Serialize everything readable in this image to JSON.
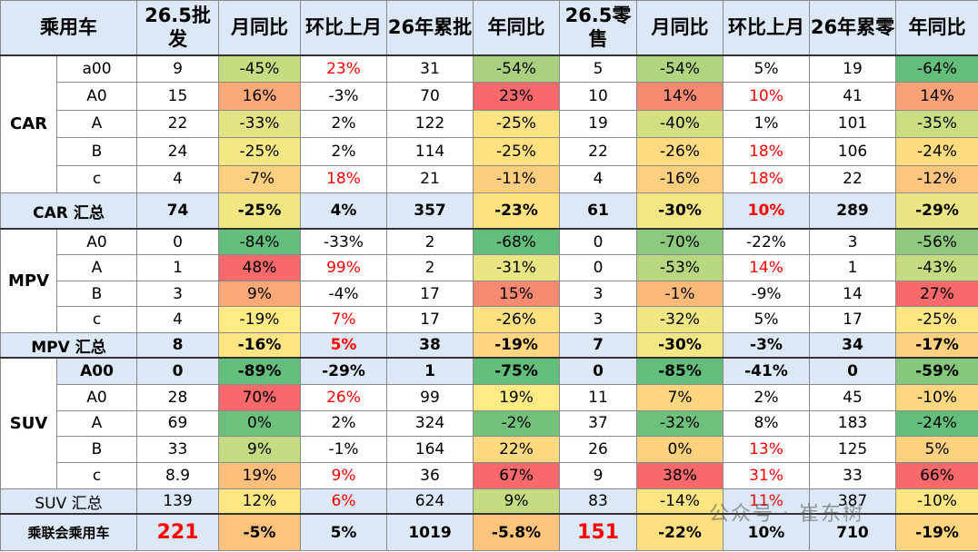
{
  "header": {
    "title": "乘用车",
    "columns": [
      "26.5批发",
      "月同比",
      "环比上月",
      "26年累批",
      "年同比",
      "26.5零售",
      "月同比",
      "环比上月",
      "26年累零",
      "年同比"
    ]
  },
  "groups": [
    {
      "label": "CAR",
      "rows": [
        {
          "sub": "a00",
          "cells": [
            "9",
            "-45%",
            "23%",
            "31",
            "-54%",
            "5",
            "-54%",
            "5%",
            "19",
            "-64%"
          ],
          "fills": [
            null,
            "#c5dd80",
            null,
            null,
            "#a8d27f",
            null,
            "#b0d47f",
            null,
            null,
            "#63be7b"
          ],
          "text_colors": [
            null,
            null,
            "#ff0000",
            null,
            null,
            null,
            null,
            null,
            null,
            null
          ]
        },
        {
          "sub": "A0",
          "cells": [
            "15",
            "16%",
            "-3%",
            "70",
            "23%",
            "10",
            "14%",
            "10%",
            "41",
            "14%"
          ],
          "fills": [
            null,
            "#fbaa77",
            null,
            null,
            "#f8696b",
            null,
            "#f98a72",
            null,
            null,
            "#fba276"
          ],
          "text_colors": [
            null,
            null,
            null,
            null,
            null,
            null,
            null,
            "#ff0000",
            null,
            null
          ]
        },
        {
          "sub": "A",
          "cells": [
            "22",
            "-33%",
            "2%",
            "122",
            "-25%",
            "19",
            "-40%",
            "1%",
            "101",
            "-35%"
          ],
          "fills": [
            null,
            "#e2e383",
            null,
            null,
            "#fee383",
            null,
            "#d5df82",
            null,
            null,
            "#c9dd81"
          ],
          "text_colors": [
            null,
            null,
            null,
            null,
            null,
            null,
            null,
            null,
            null,
            null
          ]
        },
        {
          "sub": "B",
          "cells": [
            "24",
            "-25%",
            "2%",
            "114",
            "-25%",
            "22",
            "-26%",
            "18%",
            "106",
            "-24%"
          ],
          "fills": [
            null,
            "#f3e884",
            null,
            null,
            "#fee282",
            null,
            "#fedb81",
            null,
            null,
            "#fedd81"
          ],
          "text_colors": [
            null,
            null,
            null,
            null,
            null,
            null,
            null,
            "#ff0000",
            null,
            null
          ]
        },
        {
          "sub": "c",
          "cells": [
            "4",
            "-7%",
            "18%",
            "21",
            "-11%",
            "4",
            "-16%",
            "18%",
            "22",
            "-12%"
          ],
          "fills": [
            null,
            "#fed07f",
            null,
            null,
            "#fece7f",
            null,
            "#fecf7f",
            null,
            null,
            "#fdc57d"
          ],
          "text_colors": [
            null,
            null,
            "#ff0000",
            null,
            null,
            null,
            null,
            "#ff0000",
            null,
            null
          ]
        }
      ],
      "total": {
        "label": "CAR 汇总",
        "bold": true,
        "cells": [
          "74",
          "-25%",
          "4%",
          "357",
          "-23%",
          "61",
          "-30%",
          "10%",
          "289",
          "-29%"
        ],
        "fills": [
          null,
          "#f0e784",
          null,
          null,
          "#fee282",
          null,
          "#f2e784",
          null,
          null,
          "#ece583"
        ],
        "text_colors": [
          null,
          null,
          null,
          null,
          null,
          null,
          null,
          "#ff0000",
          null,
          null
        ]
      }
    },
    {
      "label": "MPV",
      "rows": [
        {
          "sub": "A0",
          "cells": [
            "0",
            "-84%",
            "-33%",
            "2",
            "-68%",
            "0",
            "-70%",
            "-22%",
            "3",
            "-56%"
          ],
          "fills": [
            null,
            "#63be7b",
            null,
            null,
            "#63be7b",
            null,
            "#8cc87e",
            null,
            null,
            "#8fc97e"
          ],
          "text_colors": [
            null,
            null,
            null,
            null,
            null,
            null,
            null,
            null,
            null,
            null
          ]
        },
        {
          "sub": "A",
          "cells": [
            "1",
            "48%",
            "99%",
            "2",
            "-31%",
            "0",
            "-53%",
            "14%",
            "1",
            "-43%"
          ],
          "fills": [
            null,
            "#f8696b",
            null,
            null,
            "#e8e583",
            null,
            "#b9d780",
            null,
            null,
            "#c4db81"
          ],
          "text_colors": [
            null,
            null,
            "#ff0000",
            null,
            null,
            null,
            null,
            "#ff0000",
            null,
            null
          ]
        },
        {
          "sub": "B",
          "cells": [
            "3",
            "9%",
            "-4%",
            "17",
            "15%",
            "3",
            "-1%",
            "-9%",
            "14",
            "27%"
          ],
          "fills": [
            null,
            "#fbaa77",
            null,
            null,
            "#f98a72",
            null,
            "#fcbb7b",
            null,
            null,
            "#f8696b"
          ],
          "text_colors": [
            null,
            null,
            null,
            null,
            null,
            null,
            null,
            null,
            null,
            null
          ]
        },
        {
          "sub": "c",
          "cells": [
            "4",
            "-19%",
            "7%",
            "17",
            "-26%",
            "3",
            "-32%",
            "5%",
            "17",
            "-25%"
          ],
          "fills": [
            null,
            "#ffeb84",
            null,
            null,
            "#fee282",
            null,
            "#f0e784",
            null,
            null,
            "#fee683"
          ],
          "text_colors": [
            null,
            null,
            "#ff0000",
            null,
            null,
            null,
            null,
            null,
            null,
            null
          ]
        }
      ],
      "total": {
        "label": "MPV 汇总",
        "bold": true,
        "cells": [
          "8",
          "-16%",
          "5%",
          "38",
          "-19%",
          "7",
          "-30%",
          "-3%",
          "34",
          "-17%"
        ],
        "fills": [
          null,
          "#fee583",
          null,
          null,
          "#fed580",
          null,
          "#f2e784",
          null,
          null,
          "#fdd17f"
        ],
        "text_colors": [
          null,
          null,
          "#ff0000",
          null,
          null,
          null,
          null,
          null,
          null,
          null
        ]
      }
    },
    {
      "label": "SUV",
      "rows": [
        {
          "sub": "A00",
          "bold": true,
          "cells": [
            "0",
            "-89%",
            "-29%",
            "1",
            "-75%",
            "0",
            "-85%",
            "-41%",
            "0",
            "-59%"
          ],
          "fills": [
            null,
            "#63be7b",
            null,
            null,
            "#63be7b",
            null,
            "#63be7b",
            null,
            null,
            "#85c77d"
          ],
          "text_colors": [
            null,
            null,
            null,
            null,
            null,
            null,
            null,
            null,
            null,
            null
          ]
        },
        {
          "sub": "A0",
          "cells": [
            "28",
            "70%",
            "26%",
            "99",
            "19%",
            "11",
            "7%",
            "2%",
            "45",
            "-10%"
          ],
          "fills": [
            null,
            "#f8696b",
            null,
            null,
            "#ffeb84",
            null,
            "#fed680",
            null,
            null,
            "#fed880"
          ],
          "text_colors": [
            null,
            null,
            "#ff0000",
            null,
            null,
            null,
            null,
            null,
            null,
            null
          ]
        },
        {
          "sub": "A",
          "cells": [
            "69",
            "0%",
            "2%",
            "324",
            "-2%",
            "37",
            "-32%",
            "8%",
            "183",
            "-24%"
          ],
          "fills": [
            null,
            "#6bc07b",
            null,
            null,
            "#72c27c",
            null,
            "#6ec17c",
            null,
            null,
            "#63be7b"
          ],
          "text_colors": [
            null,
            null,
            null,
            null,
            null,
            null,
            null,
            null,
            null,
            null
          ]
        },
        {
          "sub": "B",
          "cells": [
            "33",
            "9%",
            "-1%",
            "164",
            "22%",
            "26",
            "0%",
            "13%",
            "125",
            "5%"
          ],
          "fills": [
            null,
            "#c4dc81",
            null,
            null,
            "#fed980",
            null,
            "#fed17f",
            null,
            null,
            "#fed27f"
          ],
          "text_colors": [
            null,
            null,
            null,
            null,
            null,
            null,
            null,
            "#ff0000",
            null,
            null
          ]
        },
        {
          "sub": "c",
          "cells": [
            "8.9",
            "19%",
            "9%",
            "36",
            "67%",
            "9",
            "38%",
            "31%",
            "33",
            "66%"
          ],
          "fills": [
            null,
            "#fdc07c",
            null,
            null,
            "#f8696b",
            null,
            "#f8696b",
            null,
            null,
            "#f8696b"
          ],
          "text_colors": [
            null,
            null,
            "#ff0000",
            null,
            null,
            null,
            null,
            "#ff0000",
            null,
            null
          ]
        }
      ],
      "total": {
        "label": "SUV 汇总",
        "bold": false,
        "cells": [
          "139",
          "12%",
          "6%",
          "624",
          "9%",
          "83",
          "-14%",
          "11%",
          "387",
          "-10%"
        ],
        "fills": [
          null,
          "#ffe884",
          null,
          null,
          "#c4dc81",
          null,
          "#fee783",
          null,
          null,
          "#fee683"
        ],
        "text_colors": [
          null,
          null,
          "#ff0000",
          null,
          null,
          null,
          null,
          "#ff0000",
          null,
          null
        ]
      }
    }
  ],
  "grand_total": {
    "label": "乘联会乘用车",
    "bold": true,
    "cells": [
      "221",
      "-5%",
      "5%",
      "1019",
      "-5.8%",
      "151",
      "-22%",
      "10%",
      "710",
      "-19%"
    ],
    "fills": [
      null,
      "#fdc37d",
      null,
      null,
      "#fdc47d",
      null,
      "#fee082",
      null,
      null,
      "#fed680"
    ],
    "text_colors": [
      "#ff0000",
      null,
      null,
      null,
      null,
      "#ff0000",
      null,
      null,
      null,
      null
    ]
  },
  "watermark": "公众号 · 崔东树"
}
